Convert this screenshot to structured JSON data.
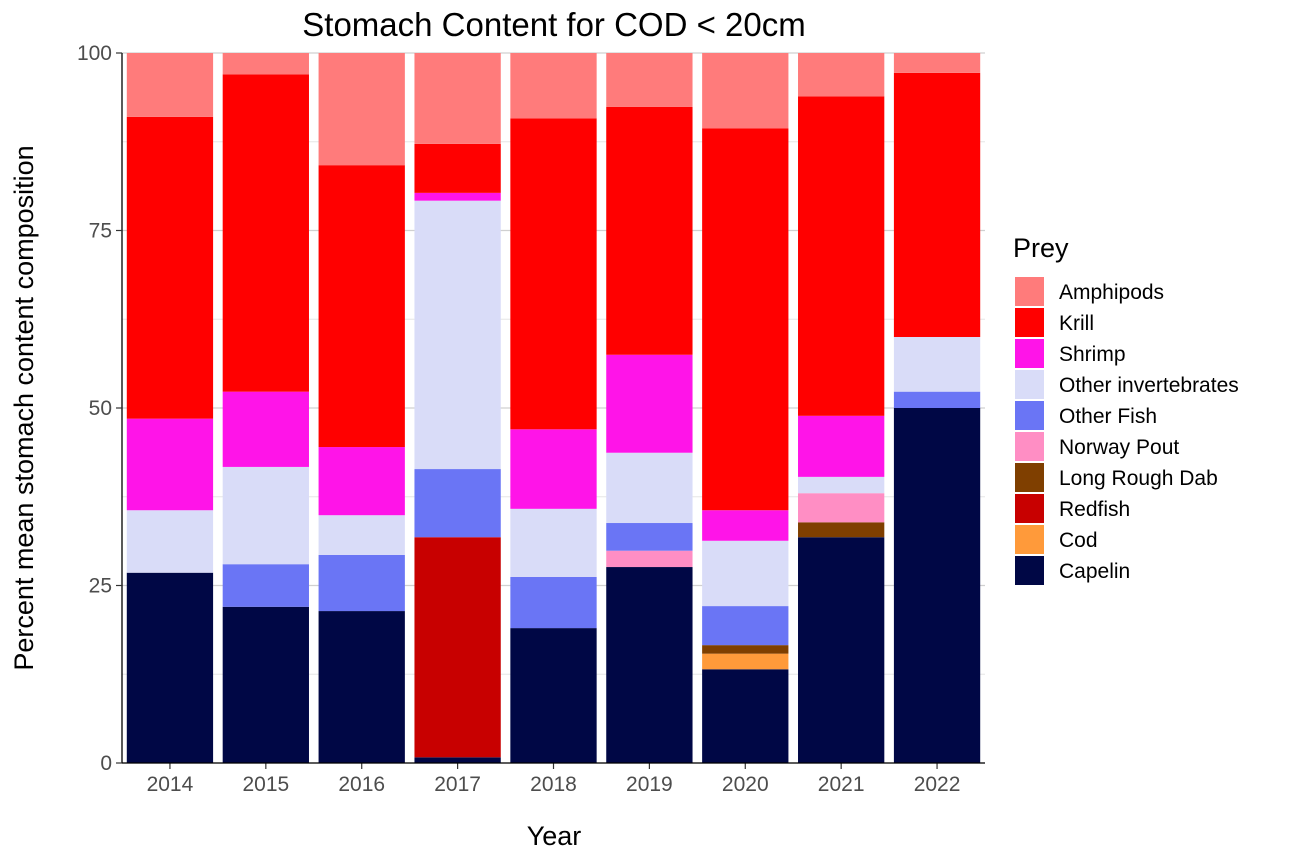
{
  "chart_data": {
    "type": "bar",
    "stacked": true,
    "title": "Stomach Content for COD < 20cm",
    "xlabel": "Year",
    "ylabel": "Percent mean stomach content composition",
    "ylim": [
      0,
      100
    ],
    "yticks": [
      0,
      25,
      50,
      75,
      100
    ],
    "grid": true,
    "legend": {
      "title": "Prey",
      "placement": "right"
    },
    "categories": [
      "2014",
      "2015",
      "2016",
      "2017",
      "2018",
      "2019",
      "2020",
      "2021",
      "2022"
    ],
    "series": [
      {
        "name": "Capelin",
        "color": "#000745",
        "values": [
          26.8,
          22.0,
          21.4,
          0.8,
          19.0,
          27.6,
          13.2,
          31.8,
          50.0
        ]
      },
      {
        "name": "Cod",
        "color": "#FF9A3A",
        "values": [
          0,
          0,
          0,
          0,
          0,
          0,
          2.2,
          0,
          0
        ]
      },
      {
        "name": "Redfish",
        "color": "#C80000",
        "values": [
          0,
          0,
          0,
          31.0,
          0,
          0,
          0,
          0,
          0
        ]
      },
      {
        "name": "Long Rough Dab",
        "color": "#7F3F00",
        "values": [
          0,
          0,
          0,
          0,
          0,
          0,
          1.2,
          2.1,
          0
        ]
      },
      {
        "name": "Norway Pout",
        "color": "#FF8EC4",
        "values": [
          0,
          0,
          0,
          0,
          0,
          2.3,
          0,
          4.1,
          0
        ]
      },
      {
        "name": "Other Fish",
        "color": "#6A75F5",
        "values": [
          0,
          6.0,
          7.9,
          9.6,
          7.2,
          3.9,
          5.5,
          0,
          2.3
        ]
      },
      {
        "name": "Other invertebrates",
        "color": "#D9DCF8",
        "values": [
          8.8,
          13.7,
          5.6,
          37.8,
          9.6,
          9.9,
          9.2,
          2.3,
          7.7
        ]
      },
      {
        "name": "Shrimp",
        "color": "#FF14E8",
        "values": [
          12.9,
          10.6,
          9.6,
          1.1,
          11.2,
          13.8,
          4.3,
          8.6,
          0
        ]
      },
      {
        "name": "Krill",
        "color": "#FF0000",
        "values": [
          42.5,
          44.7,
          39.7,
          6.9,
          43.8,
          34.9,
          53.8,
          45.0,
          37.2
        ]
      },
      {
        "name": "Amphipods",
        "color": "#FF7B7B",
        "values": [
          9.0,
          3.0,
          15.8,
          12.8,
          9.2,
          7.6,
          10.6,
          6.1,
          2.8
        ]
      }
    ]
  }
}
